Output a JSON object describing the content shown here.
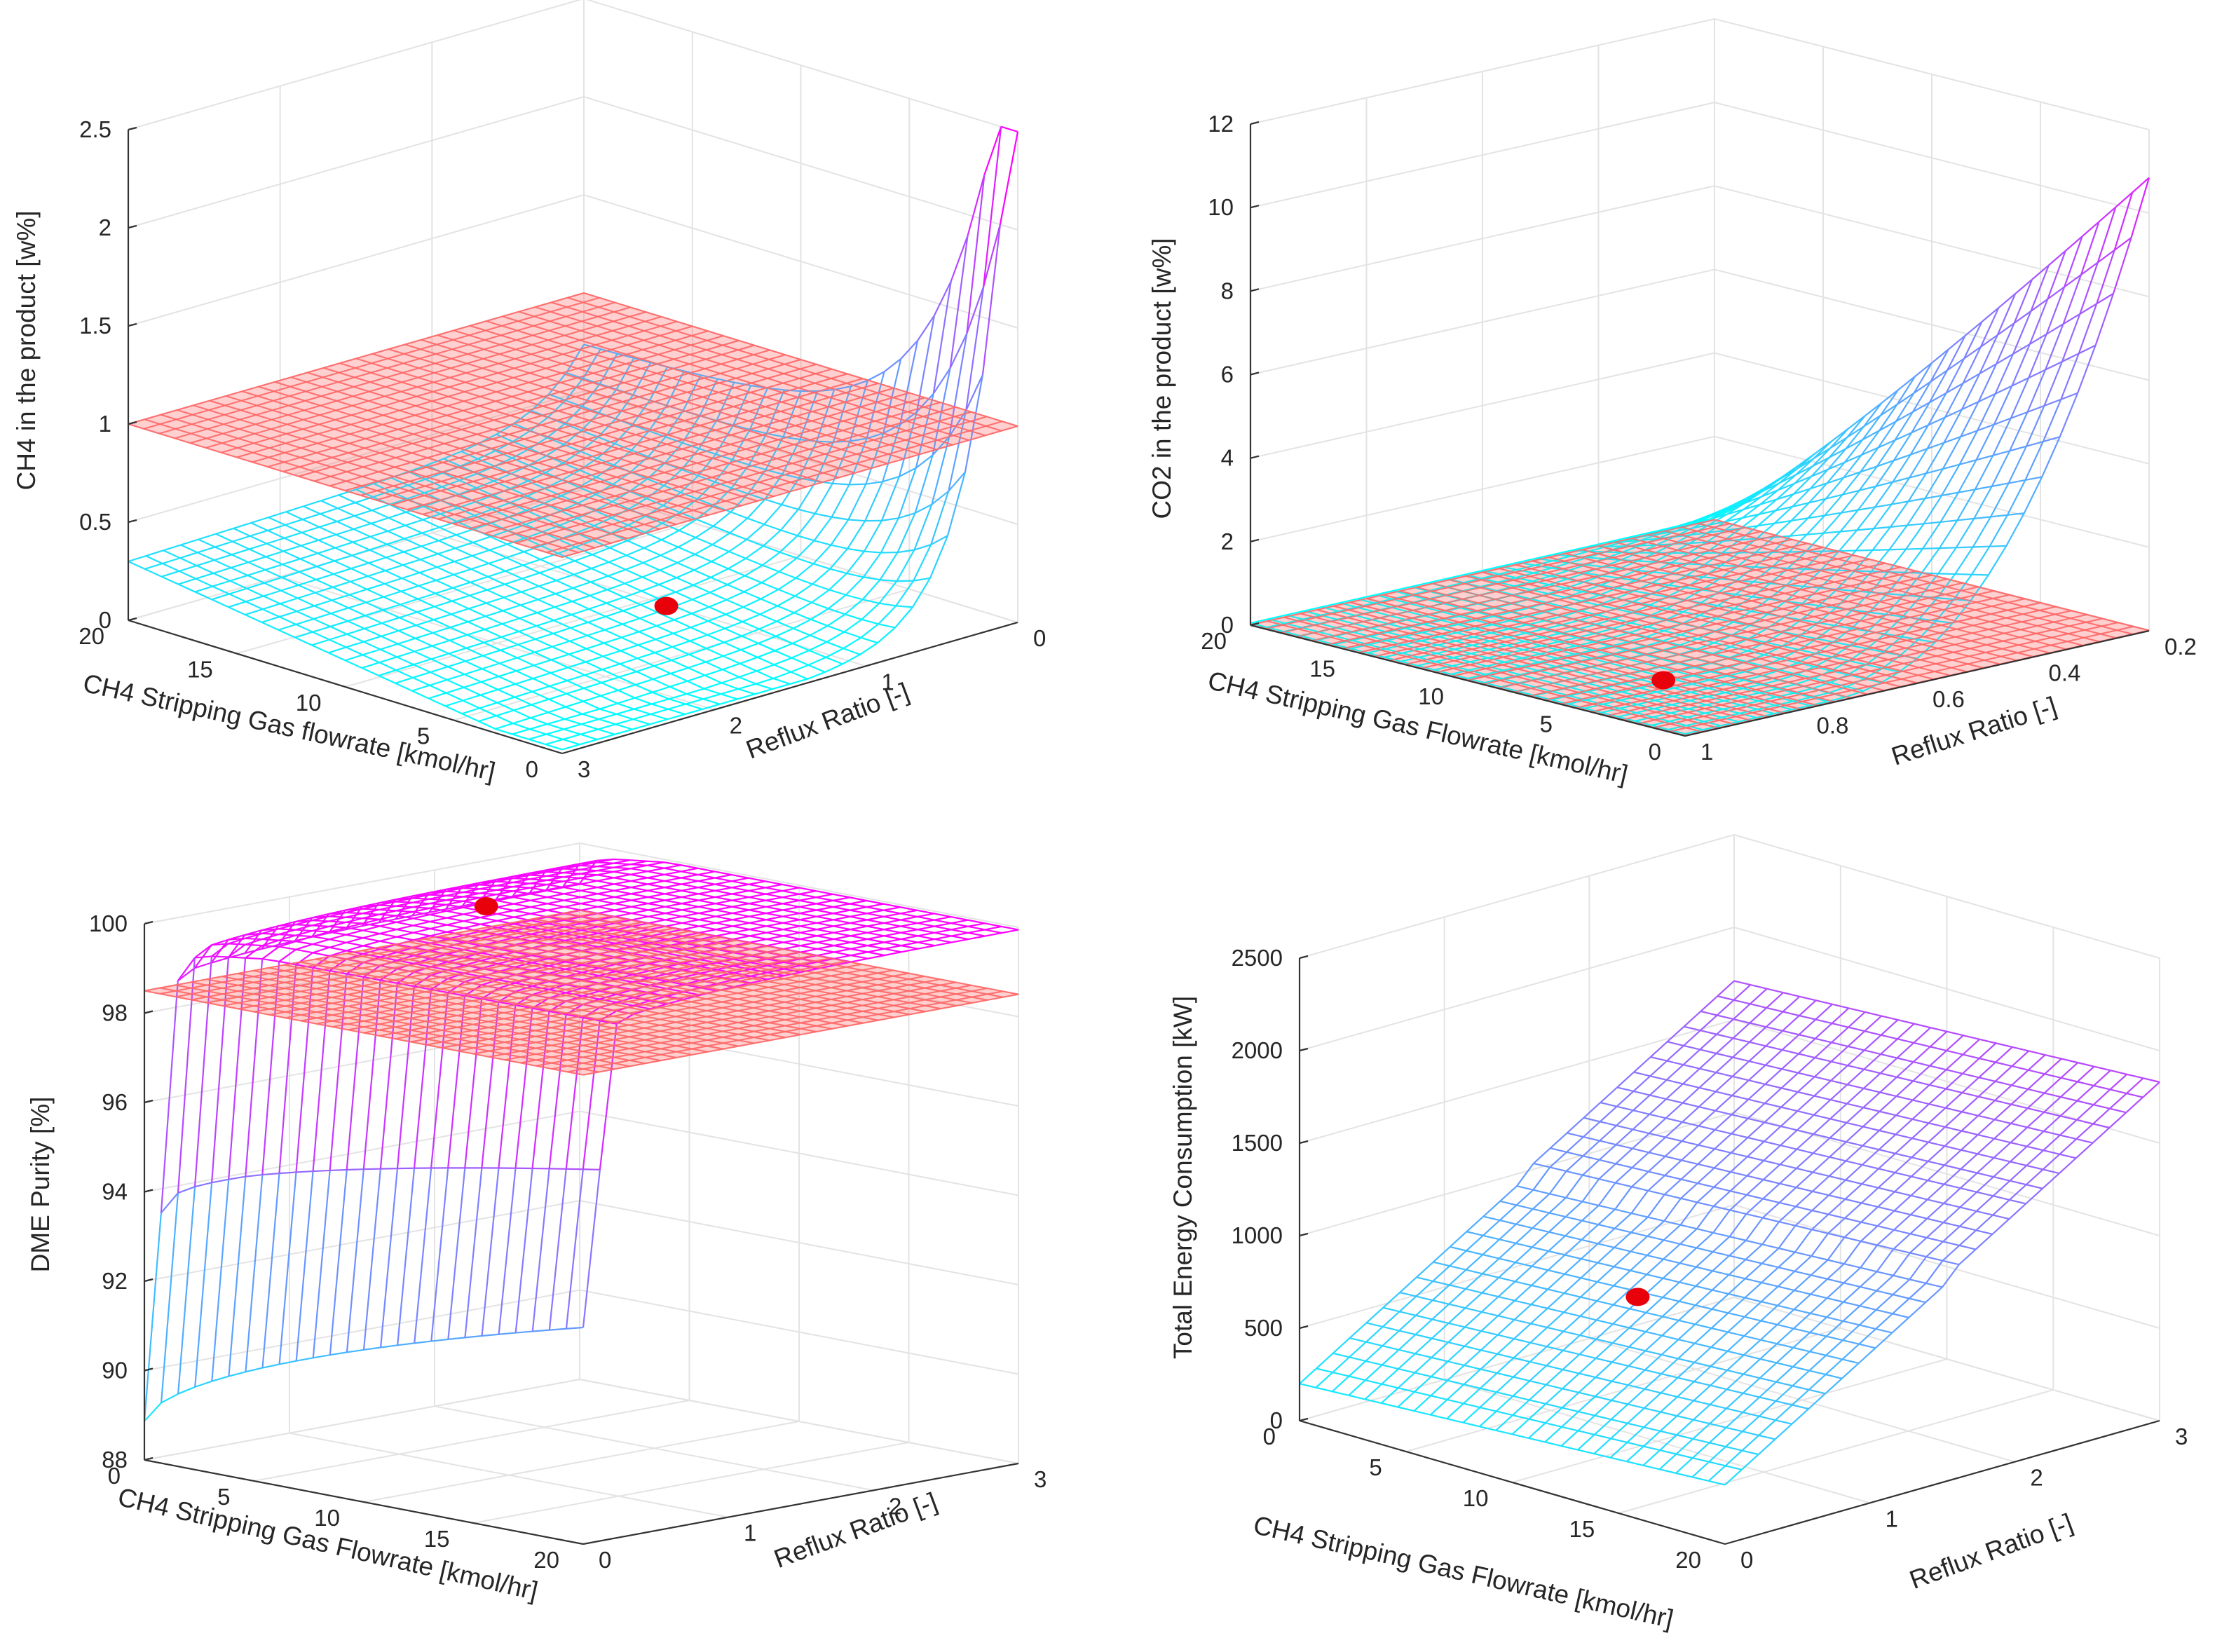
{
  "colors": {
    "mesh_low": "#00ffff",
    "mesh_high": "#ff00ff",
    "threshold_plane": "#ff6a6a",
    "optimum_point": "#e8000b",
    "axis": "#333333",
    "grid": "#e3e3e3",
    "text": "#262626"
  },
  "chart_data": [
    {
      "id": "ch4-product",
      "type": "surface3d",
      "title": "",
      "zlabel": "CH4 in the product [w%]",
      "flowlabel": "CH4 Stripping Gas flowrate [kmol/hr]",
      "refluxlabel": "Reflux Ratio [-]",
      "flow_range": [
        0,
        20
      ],
      "reflux_range": [
        0,
        3
      ],
      "zlim": [
        0,
        2.5
      ],
      "flow_ticks": [
        {
          "v": 0,
          "label": "0"
        },
        {
          "v": 5,
          "label": "5"
        },
        {
          "v": 10,
          "label": "10"
        },
        {
          "v": 15,
          "label": "15"
        },
        {
          "v": 20,
          "label": "20"
        }
      ],
      "reflux_ticks": [
        {
          "v": 0,
          "label": "0"
        },
        {
          "v": 1,
          "label": "1"
        },
        {
          "v": 2,
          "label": "2"
        },
        {
          "v": 3,
          "label": "3"
        }
      ],
      "z_ticks": [
        {
          "v": 0,
          "label": "0"
        },
        {
          "v": 0.5,
          "label": "0.5"
        },
        {
          "v": 1,
          "label": "1"
        },
        {
          "v": 1.5,
          "label": "1.5"
        },
        {
          "v": 2,
          "label": "2"
        },
        {
          "v": 2.5,
          "label": "2.5"
        }
      ],
      "threshold": 1.0,
      "optimum": {
        "flow": 5,
        "reflux": 1.6,
        "value": 0.27
      },
      "model": "ch4"
    },
    {
      "id": "co2-product",
      "type": "surface3d",
      "title": "",
      "zlabel": "CO2 in the product [w%]",
      "flowlabel": "CH4 Stripping Gas Flowrate [kmol/hr]",
      "refluxlabel": "Reflux Ratio [-]",
      "flow_range": [
        0,
        20
      ],
      "reflux_range": [
        0.2,
        1
      ],
      "zlim": [
        0,
        12
      ],
      "flow_ticks": [
        {
          "v": 0,
          "label": "0"
        },
        {
          "v": 5,
          "label": "5"
        },
        {
          "v": 10,
          "label": "10"
        },
        {
          "v": 15,
          "label": "15"
        },
        {
          "v": 20,
          "label": "20"
        }
      ],
      "reflux_ticks": [
        {
          "v": 0.2,
          "label": "0.2"
        },
        {
          "v": 0.4,
          "label": "0.4"
        },
        {
          "v": 0.6,
          "label": "0.6"
        },
        {
          "v": 0.8,
          "label": "0.8"
        },
        {
          "v": 1,
          "label": "1"
        }
      ],
      "z_ticks": [
        {
          "v": 0,
          "label": "0"
        },
        {
          "v": 2,
          "label": "2"
        },
        {
          "v": 4,
          "label": "4"
        },
        {
          "v": 6,
          "label": "6"
        },
        {
          "v": 8,
          "label": "8"
        },
        {
          "v": 10,
          "label": "10"
        },
        {
          "v": 12,
          "label": "12"
        }
      ],
      "threshold": 0.01,
      "optimum": {
        "flow": 5,
        "reflux": 0.85,
        "value": 0.2
      },
      "model": "co2"
    },
    {
      "id": "dme-purity",
      "type": "surface3d",
      "title": "",
      "zlabel": "DME Purity [%]",
      "flowlabel": "CH4 Stripping Gas Flowrate [kmol/hr]",
      "refluxlabel": "Reflux Ratio [-]",
      "flow_range": [
        0,
        20
      ],
      "reflux_range": [
        0,
        3
      ],
      "zlim": [
        88,
        100
      ],
      "flow_ticks": [
        {
          "v": 0,
          "label": "0"
        },
        {
          "v": 5,
          "label": "5"
        },
        {
          "v": 10,
          "label": "10"
        },
        {
          "v": 15,
          "label": "15"
        },
        {
          "v": 20,
          "label": "20"
        }
      ],
      "reflux_ticks": [
        {
          "v": 0,
          "label": "0"
        },
        {
          "v": 1,
          "label": "1"
        },
        {
          "v": 2,
          "label": "2"
        },
        {
          "v": 3,
          "label": "3"
        }
      ],
      "z_ticks": [
        {
          "v": 88,
          "label": "88"
        },
        {
          "v": 90,
          "label": "90"
        },
        {
          "v": 92,
          "label": "92"
        },
        {
          "v": 94,
          "label": "94"
        },
        {
          "v": 96,
          "label": "96"
        },
        {
          "v": 98,
          "label": "98"
        },
        {
          "v": 100,
          "label": "100"
        }
      ],
      "threshold": 98.5,
      "optimum": {
        "flow": 5,
        "reflux": 1.6,
        "value": 99.9
      },
      "model": "dme"
    },
    {
      "id": "energy",
      "type": "surface3d",
      "title": "",
      "zlabel": "Total Energy Consumption [kW]",
      "flowlabel": "CH4 Stripping Gas Flowrate [kmol/hr]",
      "refluxlabel": "Reflux Ratio [-]",
      "flow_range": [
        0,
        20
      ],
      "reflux_range": [
        0,
        3
      ],
      "zlim": [
        0,
        2500
      ],
      "flow_ticks": [
        {
          "v": 0,
          "label": "0"
        },
        {
          "v": 5,
          "label": "5"
        },
        {
          "v": 10,
          "label": "10"
        },
        {
          "v": 15,
          "label": "15"
        },
        {
          "v": 20,
          "label": "20"
        }
      ],
      "reflux_ticks": [
        {
          "v": 0,
          "label": "0"
        },
        {
          "v": 1,
          "label": "1"
        },
        {
          "v": 2,
          "label": "2"
        },
        {
          "v": 3,
          "label": "3"
        }
      ],
      "z_ticks": [
        {
          "v": 0,
          "label": "0"
        },
        {
          "v": 500,
          "label": "500"
        },
        {
          "v": 1000,
          "label": "1000"
        },
        {
          "v": 1500,
          "label": "1500"
        },
        {
          "v": 2000,
          "label": "2000"
        },
        {
          "v": 2500,
          "label": "2500"
        }
      ],
      "threshold": null,
      "optimum": {
        "flow": 5,
        "reflux": 1.6,
        "value": 480
      },
      "model": "energy"
    }
  ]
}
